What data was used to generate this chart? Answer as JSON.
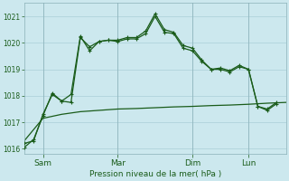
{
  "title": "Pression niveau de la mer( hPa )",
  "ylim": [
    1015.8,
    1021.5
  ],
  "yticks": [
    1016,
    1017,
    1018,
    1019,
    1020,
    1021
  ],
  "background_color": "#cce8ee",
  "grid_color": "#aacfd8",
  "line_color": "#1a5c1a",
  "label_color": "#1a5c1a",
  "x_tick_labels": [
    "Sam",
    "Mar",
    "Dim",
    "Lun"
  ],
  "x_tick_positions": [
    8,
    40,
    72,
    96
  ],
  "xlim": [
    0,
    112
  ],
  "series1_x": [
    0,
    4,
    8,
    12,
    16,
    20,
    24,
    28,
    32,
    36,
    40,
    44,
    48,
    52,
    56,
    60,
    64,
    68,
    72,
    76,
    80,
    84,
    88,
    92,
    96,
    100,
    104,
    108
  ],
  "series1_y": [
    1016.2,
    1016.3,
    1017.3,
    1018.05,
    1017.8,
    1017.75,
    1020.2,
    1019.85,
    1020.05,
    1020.1,
    1020.1,
    1020.2,
    1020.2,
    1020.45,
    1021.1,
    1020.5,
    1020.4,
    1019.9,
    1019.8,
    1019.35,
    1019.0,
    1019.05,
    1018.95,
    1019.15,
    1019.0,
    1017.6,
    1017.5,
    1017.75
  ],
  "series2_x": [
    0,
    4,
    8,
    12,
    16,
    20,
    24,
    28,
    32,
    36,
    40,
    44,
    48,
    52,
    56,
    60,
    64,
    68,
    72,
    76,
    80,
    84,
    88,
    92,
    96,
    100,
    104,
    108
  ],
  "series2_y": [
    1016.05,
    1016.35,
    1017.25,
    1018.1,
    1017.8,
    1018.05,
    1020.25,
    1019.7,
    1020.05,
    1020.1,
    1020.05,
    1020.15,
    1020.15,
    1020.35,
    1021.0,
    1020.4,
    1020.35,
    1019.8,
    1019.7,
    1019.3,
    1019.0,
    1019.0,
    1018.9,
    1019.1,
    1019.0,
    1017.6,
    1017.45,
    1017.7
  ],
  "series3_x": [
    0,
    8,
    16,
    24,
    32,
    40,
    48,
    56,
    64,
    72,
    80,
    88,
    96,
    104,
    112
  ],
  "series3_y": [
    1016.3,
    1017.15,
    1017.3,
    1017.4,
    1017.45,
    1017.5,
    1017.52,
    1017.55,
    1017.58,
    1017.6,
    1017.63,
    1017.65,
    1017.68,
    1017.72,
    1017.75
  ]
}
